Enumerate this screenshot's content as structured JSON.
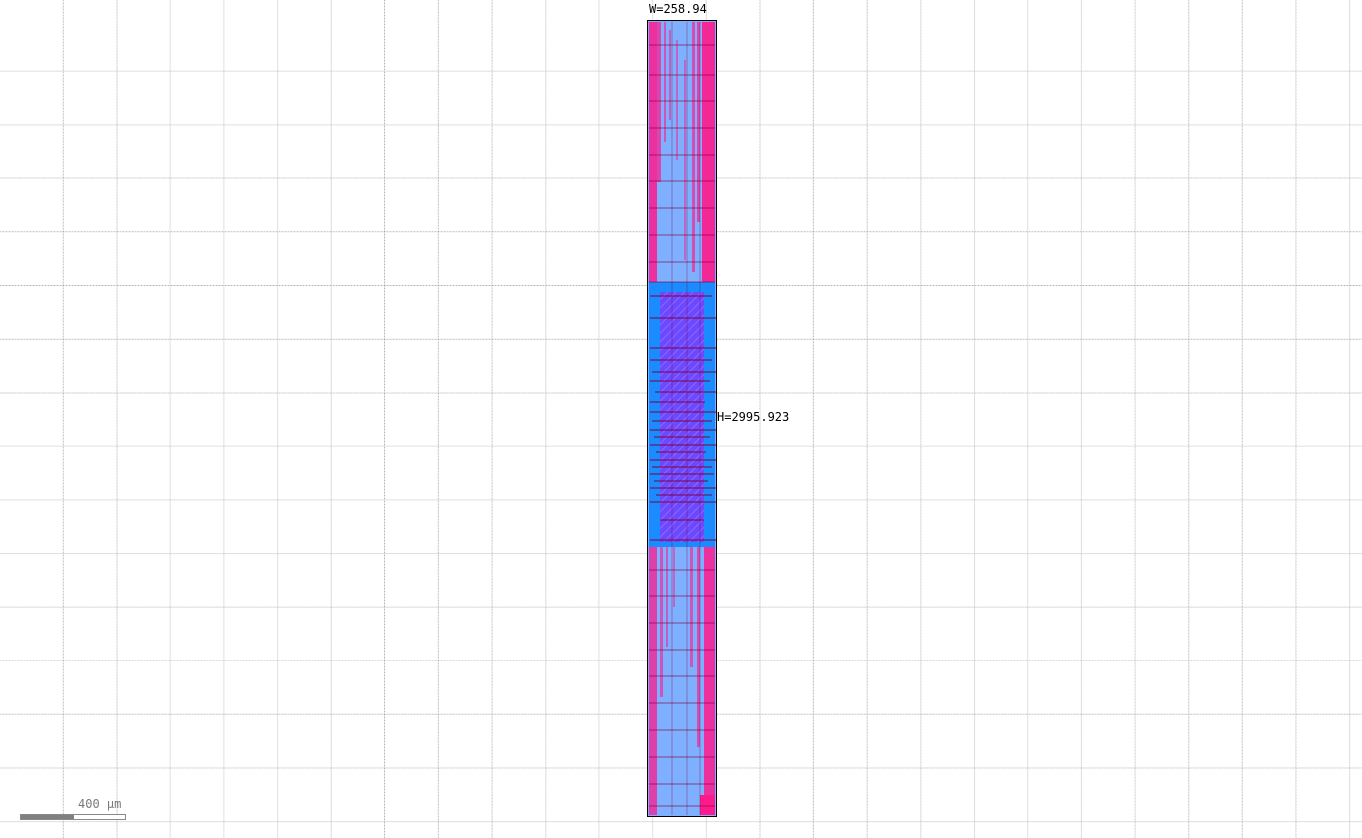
{
  "layout": {
    "width_label": "W=258.94",
    "height_label": "H=2995.923",
    "colors": {
      "background": "#ffffff",
      "grid": "#9a9a9a",
      "outline": "#000000",
      "metal_light_blue": "#7fb0ff",
      "metal_blue": "#1a8cff",
      "metal_pink": "#ff1a8c",
      "metal_purple": "#7a3cff",
      "metal_dark": "#800040"
    }
  },
  "scale_bar": {
    "label": "400 µm"
  }
}
